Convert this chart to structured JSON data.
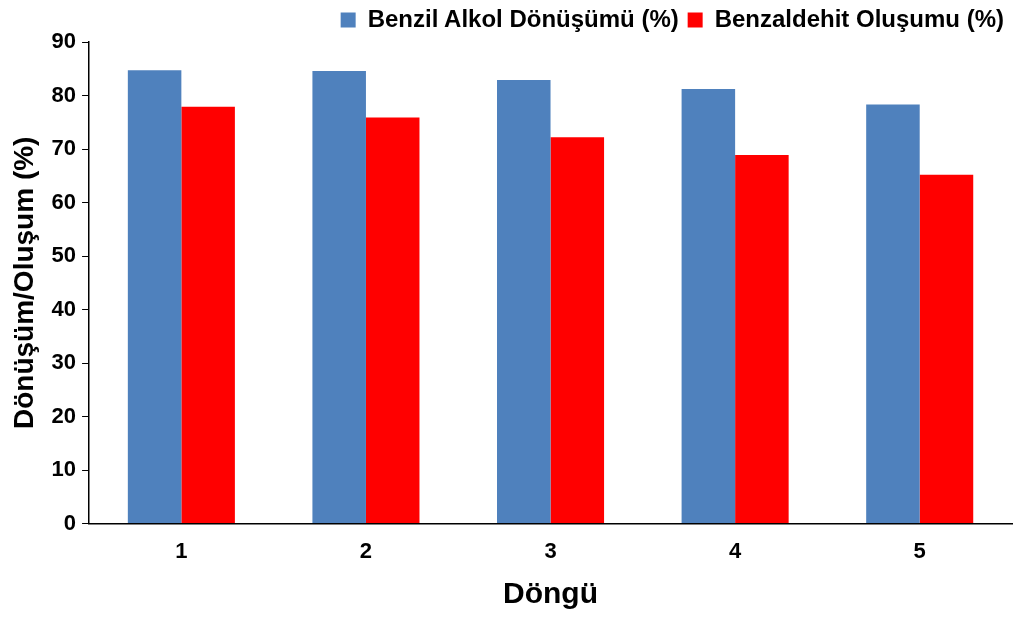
{
  "chart_data": {
    "type": "bar",
    "xlabel": "Döngü",
    "ylabel": "Dönüşüm/Oluşum (%)",
    "categories": [
      "1",
      "2",
      "3",
      "4",
      "5"
    ],
    "series": [
      {
        "name": "Benzil Alkol Dönüşümü (%)",
        "color": "#4f81bd",
        "values": [
          84.7,
          84.6,
          82.9,
          81.2,
          78.3
        ]
      },
      {
        "name": "Benzaldehit Oluşumu (%)",
        "color": "#ff0000",
        "values": [
          77.9,
          75.9,
          72.2,
          68.9,
          65.2
        ]
      }
    ],
    "ylim": [
      0,
      90
    ],
    "yticks": [
      0,
      10,
      20,
      30,
      40,
      50,
      60,
      70,
      80,
      90
    ],
    "grid": false,
    "legend": "top right"
  }
}
